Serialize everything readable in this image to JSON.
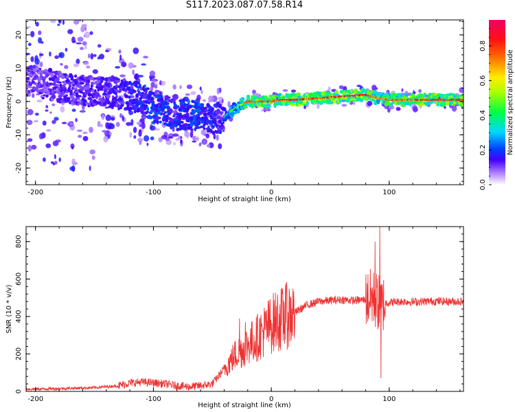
{
  "title": "S117.2023.087.07.58.R14",
  "chart_data": [
    {
      "type": "heatmap",
      "xlabel": "Height of straight line (km)",
      "ylabel": "Frequency (Hz)",
      "xlim": [
        -208,
        163
      ],
      "ylim": [
        -25,
        24.5
      ],
      "xticks": [
        -200,
        -100,
        0,
        100
      ],
      "yticks": [
        -20,
        -10,
        0,
        10,
        20
      ],
      "colorbar": {
        "label": "Normalized spectral amplitude",
        "ticks": [
          0.0,
          0.2,
          0.4,
          0.6,
          0.8
        ],
        "range": [
          0,
          0.95
        ]
      },
      "ridge": {
        "x": [
          -200,
          -175,
          -150,
          -125,
          -110,
          -100,
          -90,
          -80,
          -70,
          -60,
          -50,
          -40,
          -35,
          -30,
          -25,
          -20,
          -10,
          0,
          10,
          20,
          40,
          60,
          80,
          90,
          100,
          120,
          140,
          163
        ],
        "y": [
          6,
          4,
          3,
          2,
          1,
          -2,
          -3,
          -4,
          -4,
          -4,
          -5,
          -5,
          -3,
          -2,
          -1,
          0,
          0,
          0,
          0.5,
          0.5,
          1,
          1.5,
          2,
          1,
          0.5,
          0.5,
          0.5,
          0.5
        ],
        "amplitude": [
          0.25,
          0.3,
          0.3,
          0.35,
          0.4,
          0.45,
          0.4,
          0.4,
          0.45,
          0.45,
          0.4,
          0.35,
          0.5,
          0.55,
          0.65,
          0.85,
          0.9,
          0.85,
          0.9,
          0.95,
          0.9,
          0.95,
          0.95,
          0.8,
          0.85,
          0.9,
          0.95,
          0.9
        ]
      }
    },
    {
      "type": "line",
      "xlabel": "Height of straight line (km)",
      "ylabel": "SNR (10 * v/v)",
      "xlim": [
        -208,
        163
      ],
      "ylim": [
        0,
        880
      ],
      "xticks": [
        -200,
        -100,
        0,
        100
      ],
      "yticks": [
        0,
        200,
        400,
        600,
        800
      ],
      "series": [
        {
          "color": "#ee3333",
          "x": [
            -208,
            -180,
            -150,
            -130,
            -120,
            -110,
            -100,
            -90,
            -80,
            -70,
            -60,
            -50,
            -45,
            -40,
            -35,
            -30,
            -25,
            -20,
            -15,
            -10,
            -5,
            0,
            5,
            10,
            15,
            20,
            30,
            40,
            50,
            60,
            70,
            80,
            85,
            90,
            93,
            95,
            100,
            110,
            120,
            130,
            140,
            150,
            163
          ],
          "y": [
            12,
            15,
            20,
            30,
            45,
            50,
            45,
            40,
            30,
            25,
            30,
            40,
            80,
            120,
            160,
            200,
            220,
            250,
            270,
            300,
            330,
            360,
            380,
            390,
            410,
            420,
            460,
            480,
            485,
            490,
            485,
            490,
            500,
            480,
            450,
            470,
            475,
            480,
            478,
            480,
            482,
            480,
            480
          ],
          "spikes": [
            {
              "x": 12,
              "y": 570
            },
            {
              "x": -27,
              "y": 390
            },
            {
              "x": -22,
              "y": 370
            },
            {
              "x": 92,
              "y": 880
            },
            {
              "x": 93,
              "y": 70
            },
            {
              "x": 88,
              "y": 800
            }
          ]
        }
      ]
    }
  ]
}
